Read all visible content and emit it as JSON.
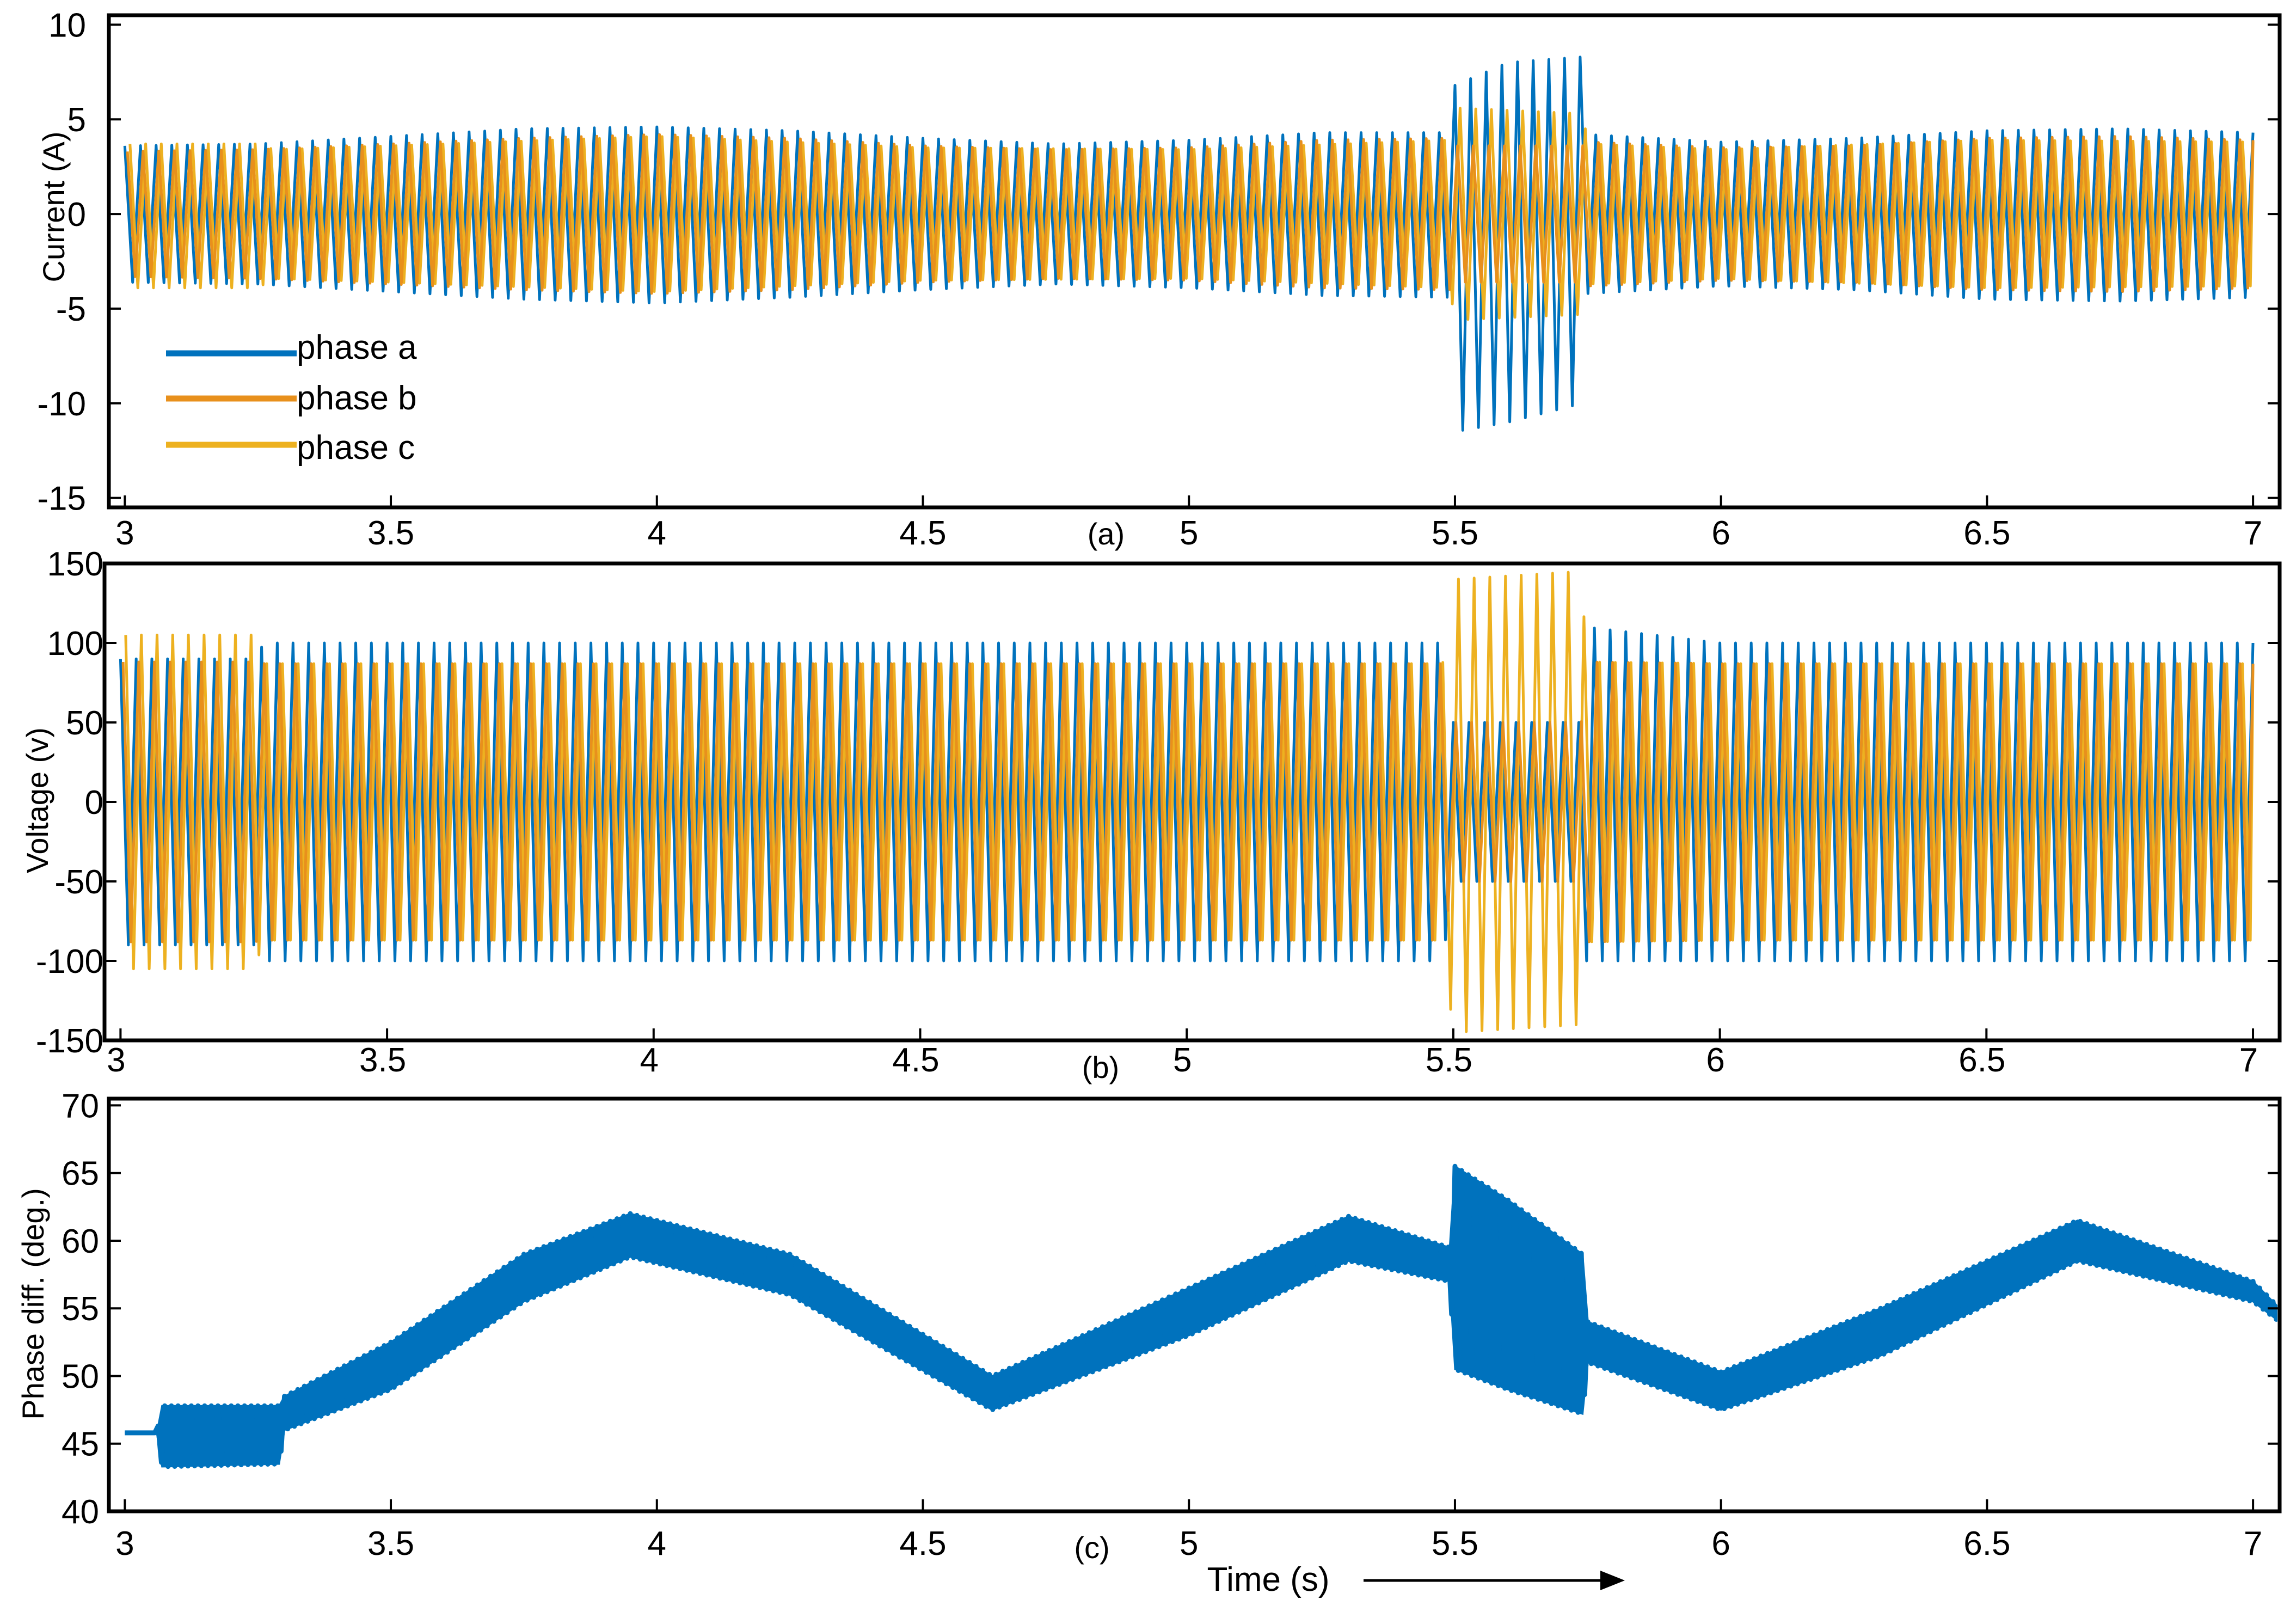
{
  "colors": {
    "phase_a": "#0072BD",
    "phase_b": "#D95319",
    "phase_b_display": "#E8901C",
    "phase_c": "#EDB120",
    "frame": "#000000",
    "background": "#FFFFFF"
  },
  "xlabel": "Time (s)",
  "chart_data": [
    {
      "type": "line",
      "panel_tag": "(a)",
      "xlabel": "",
      "ylabel": "Current (A)",
      "xlim": [
        2.97,
        7.05
      ],
      "ylim": [
        -15.5,
        10.5
      ],
      "xticks": [
        3,
        3.5,
        4,
        4.5,
        5,
        5.5,
        6,
        6.5,
        7
      ],
      "xtick_labels": [
        "3",
        "3.5",
        "4",
        "4.5",
        "5",
        "5.5",
        "6",
        "6.5",
        "7"
      ],
      "yticks": [
        10,
        5,
        0,
        -5,
        -10,
        -15
      ],
      "ytick_labels": [
        "10",
        "5",
        "0",
        "-5",
        "-10",
        "-15"
      ],
      "grid": false,
      "legend": {
        "placement": "lower-left",
        "entries": [
          "phase a",
          "phase b",
          "phase c"
        ]
      },
      "series": [
        {
          "name": "phase a",
          "color_key": "phase_a",
          "envelope_x": [
            3.0,
            3.25,
            3.5,
            3.75,
            4.0,
            4.25,
            4.5,
            4.75,
            5.0,
            5.25,
            5.49,
            5.5,
            5.6,
            5.74,
            5.75,
            6.0,
            6.25,
            6.5,
            6.75,
            7.0
          ],
          "envelope_max": [
            3.6,
            3.7,
            4.1,
            4.5,
            4.6,
            4.4,
            4.0,
            3.7,
            3.9,
            4.3,
            4.3,
            6.8,
            8.0,
            8.3,
            4.2,
            3.8,
            4.0,
            4.4,
            4.5,
            4.3
          ],
          "envelope_min": [
            -3.6,
            -3.7,
            -4.1,
            -4.5,
            -4.7,
            -4.4,
            -4.0,
            -3.7,
            -3.9,
            -4.3,
            -4.4,
            -11.5,
            -11.0,
            -10.0,
            -4.2,
            -3.8,
            -4.0,
            -4.5,
            -4.6,
            -4.4
          ]
        },
        {
          "name": "phase b",
          "color_key": "phase_b_display",
          "envelope_x": [
            3.0,
            3.25,
            3.5,
            3.75,
            4.0,
            4.25,
            4.5,
            4.75,
            5.0,
            5.25,
            5.49,
            5.5,
            5.74,
            5.75,
            6.0,
            6.25,
            6.5,
            6.75,
            7.0
          ],
          "envelope_max": [
            3.3,
            3.4,
            3.7,
            4.0,
            4.2,
            4.0,
            3.6,
            3.4,
            3.5,
            3.9,
            4.0,
            3.6,
            3.6,
            3.8,
            3.5,
            3.6,
            4.0,
            4.1,
            3.9
          ],
          "envelope_min": [
            -3.3,
            -3.4,
            -3.7,
            -4.0,
            -4.2,
            -4.0,
            -3.6,
            -3.4,
            -3.5,
            -3.9,
            -4.0,
            -3.6,
            -3.6,
            -3.8,
            -3.5,
            -3.6,
            -4.0,
            -4.1,
            -3.9
          ]
        },
        {
          "name": "phase c",
          "color_key": "phase_c",
          "envelope_x": [
            3.0,
            3.25,
            3.28,
            3.5,
            4.0,
            4.5,
            5.0,
            5.49,
            5.5,
            5.74,
            5.75,
            6.0,
            6.5,
            7.0
          ],
          "envelope_max": [
            3.7,
            3.7,
            3.4,
            3.6,
            4.1,
            3.5,
            3.4,
            3.9,
            5.6,
            5.3,
            3.7,
            3.4,
            3.9,
            3.8
          ],
          "envelope_min": [
            -3.9,
            -3.9,
            -3.4,
            -3.6,
            -4.1,
            -3.5,
            -3.4,
            -3.9,
            -5.6,
            -5.3,
            -3.7,
            -3.4,
            -3.9,
            -3.8
          ]
        }
      ]
    },
    {
      "type": "line",
      "panel_tag": "(b)",
      "xlabel": "",
      "ylabel": "Voltage (v)",
      "xlim": [
        2.97,
        7.05
      ],
      "ylim": [
        -150,
        150
      ],
      "xticks": [
        3,
        3.5,
        4,
        4.5,
        5,
        5.5,
        6,
        6.5,
        7
      ],
      "xtick_labels": [
        "3",
        "3.5",
        "4",
        "4.5",
        "5",
        "5.5",
        "6",
        "6.5",
        "7"
      ],
      "yticks": [
        150,
        100,
        50,
        0,
        -50,
        -100,
        -150
      ],
      "ytick_labels": [
        "150",
        "100",
        "50",
        "0",
        "-50",
        "-100",
        "-150"
      ],
      "grid": false,
      "series": [
        {
          "name": "phase a",
          "color_key": "phase_a",
          "envelope_x": [
            3.0,
            3.25,
            3.27,
            3.5,
            4.0,
            4.5,
            5.0,
            5.48,
            5.5,
            5.74,
            5.75,
            6.0,
            6.5,
            7.0
          ],
          "envelope_max": [
            90,
            90,
            100,
            100,
            100,
            100,
            100,
            100,
            50,
            50,
            110,
            100,
            100,
            100
          ],
          "envelope_min": [
            -90,
            -90,
            -100,
            -100,
            -100,
            -100,
            -100,
            -100,
            -50,
            -50,
            -100,
            -100,
            -100,
            -100
          ]
        },
        {
          "name": "phase b",
          "color_key": "phase_b_display",
          "envelope_x": [
            3.0,
            3.25,
            3.27,
            3.5,
            4.0,
            4.5,
            5.0,
            5.48,
            5.5,
            5.74,
            5.75,
            6.0,
            6.5,
            7.0
          ],
          "envelope_max": [
            88,
            88,
            87,
            87,
            87,
            87,
            87,
            87,
            50,
            50,
            88,
            87,
            87,
            87
          ],
          "envelope_min": [
            -88,
            -88,
            -87,
            -87,
            -87,
            -87,
            -87,
            -87,
            -50,
            -50,
            -88,
            -87,
            -87,
            -87
          ]
        },
        {
          "name": "phase c",
          "color_key": "phase_c",
          "envelope_x": [
            3.0,
            3.25,
            3.27,
            3.5,
            4.0,
            4.5,
            5.0,
            5.48,
            5.5,
            5.74,
            5.75,
            6.0,
            6.5,
            7.0
          ],
          "envelope_max": [
            105,
            105,
            87,
            87,
            87,
            87,
            87,
            87,
            140,
            145,
            88,
            87,
            87,
            87
          ],
          "envelope_min": [
            -105,
            -105,
            -87,
            -87,
            -87,
            -87,
            -87,
            -87,
            -145,
            -140,
            -88,
            -87,
            -87,
            -87
          ]
        }
      ]
    },
    {
      "type": "line",
      "panel_tag": "(c)",
      "xlabel": "Time (s)",
      "ylabel": "Phase diff. (deg.)",
      "xlim": [
        2.97,
        7.05
      ],
      "ylim": [
        40,
        70.5
      ],
      "xticks": [
        3,
        3.5,
        4,
        4.5,
        5,
        5.5,
        6,
        6.5,
        7
      ],
      "xtick_labels": [
        "3",
        "3.5",
        "4",
        "4.5",
        "5",
        "5.5",
        "6",
        "6.5",
        "7"
      ],
      "yticks": [
        70,
        65,
        60,
        55,
        50,
        45,
        40
      ],
      "ytick_labels": [
        "70",
        "65",
        "60",
        "55",
        "50",
        "45",
        "40"
      ],
      "grid": false,
      "series": [
        {
          "color_key": "phase_a",
          "envelope_x": [
            3.0,
            3.06,
            3.07,
            3.29,
            3.3,
            3.5,
            3.75,
            3.95,
            4.25,
            4.63,
            5.0,
            5.3,
            5.49,
            5.5,
            5.6,
            5.74,
            5.75,
            6.0,
            6.3,
            6.67,
            7.0,
            7.05
          ],
          "envelope_max": [
            45.8,
            45.8,
            47.8,
            47.8,
            48.5,
            52.5,
            59.0,
            62.0,
            59.0,
            50.0,
            56.5,
            61.8,
            59.5,
            65.5,
            63.0,
            59.0,
            54.0,
            50.3,
            55.0,
            61.5,
            57.0,
            55.0
          ],
          "envelope_min": [
            45.8,
            45.8,
            43.3,
            43.5,
            46.0,
            49.0,
            55.5,
            58.8,
            56.0,
            47.5,
            53.0,
            58.5,
            57.0,
            50.5,
            49.0,
            47.2,
            51.0,
            47.5,
            51.5,
            58.5,
            55.5,
            54.0
          ]
        }
      ]
    }
  ]
}
